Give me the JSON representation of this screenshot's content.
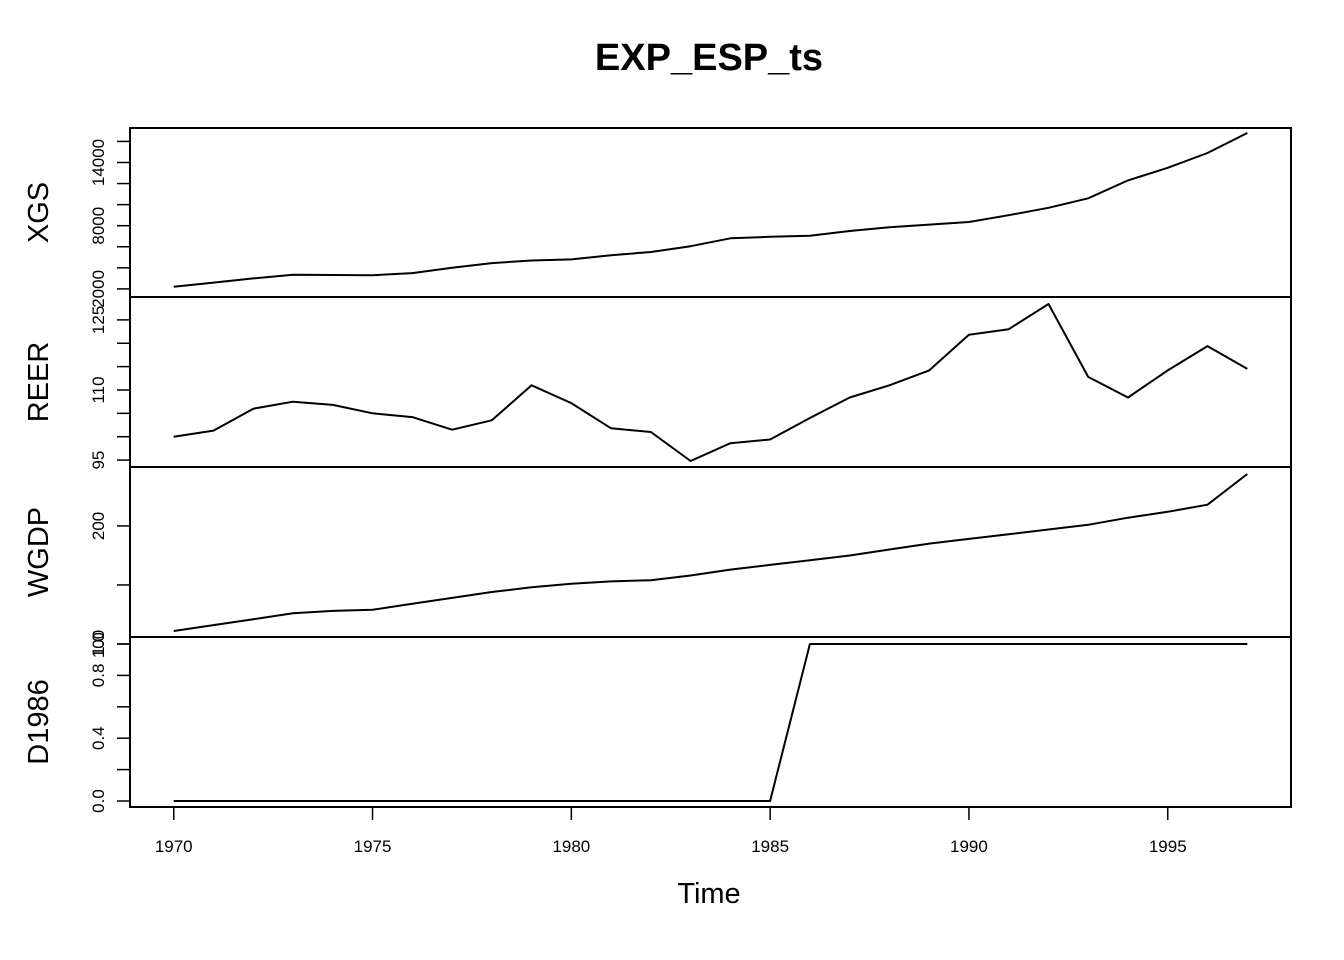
{
  "chart_data": {
    "type": "line",
    "title": "EXP_ESP_ts",
    "xlabel": "Time",
    "x": [
      1970,
      1971,
      1972,
      1973,
      1974,
      1975,
      1976,
      1977,
      1978,
      1979,
      1980,
      1981,
      1982,
      1983,
      1984,
      1985,
      1986,
      1987,
      1988,
      1989,
      1990,
      1991,
      1992,
      1993,
      1994,
      1995,
      1996,
      1997
    ],
    "xlim": [
      1968.9,
      1998.1
    ],
    "x_ticks": [
      1970,
      1975,
      1980,
      1985,
      1990,
      1995
    ],
    "x_tick_labels": [
      "1970",
      "1975",
      "1980",
      "1985",
      "1990",
      "1995"
    ],
    "grid": false,
    "line_color": "#000000",
    "series": [
      {
        "name": "XGS",
        "ylim": [
          1800,
          16800
        ],
        "y_ticks": [
          2000,
          4000,
          6000,
          8000,
          10000,
          12000,
          14000,
          16000
        ],
        "y_tick_labels": [
          "2000",
          "",
          "",
          "8000",
          "",
          "",
          "14000",
          ""
        ],
        "values": [
          2200,
          2600,
          3000,
          3350,
          3320,
          3300,
          3500,
          4000,
          4450,
          4700,
          4800,
          5200,
          5500,
          6050,
          6800,
          6950,
          7050,
          7500,
          7850,
          8100,
          8350,
          9000,
          9700,
          10600,
          12300,
          13500,
          14900,
          16800
        ]
      },
      {
        "name": "REER",
        "ylim": [
          94.8,
          128.4
        ],
        "y_ticks": [
          95,
          100,
          105,
          110,
          115,
          120,
          125
        ],
        "y_tick_labels": [
          "95",
          "",
          "",
          "110",
          "",
          "",
          "125"
        ],
        "values": [
          100.0,
          101.3,
          106.0,
          107.5,
          106.8,
          105.0,
          104.2,
          101.5,
          103.5,
          111.0,
          107.2,
          101.8,
          101.0,
          94.8,
          98.6,
          99.4,
          104.0,
          108.4,
          111.0,
          114.2,
          121.8,
          123.0,
          128.4,
          112.8,
          108.4,
          114.2,
          119.4,
          114.5
        ]
      },
      {
        "name": "WGDP",
        "ylim": [
          111,
          244
        ],
        "y_ticks": [
          100,
          150,
          200
        ],
        "y_tick_labels": [
          "100",
          "",
          "200"
        ],
        "values": [
          111,
          116,
          121,
          126,
          128,
          129,
          134,
          139,
          144,
          148,
          151,
          153,
          154,
          158,
          163,
          167,
          171,
          175,
          180,
          185,
          189,
          193,
          197,
          201,
          207,
          212,
          218,
          244
        ]
      },
      {
        "name": "D1986",
        "ylim": [
          0,
          1
        ],
        "y_ticks": [
          0,
          0.2,
          0.4,
          0.6,
          0.8,
          1.0
        ],
        "y_tick_labels": [
          "0.0",
          "",
          "0.4",
          "",
          "0.8",
          "1.0"
        ],
        "values": [
          0,
          0,
          0,
          0,
          0,
          0,
          0,
          0,
          0,
          0,
          0,
          0,
          0,
          0,
          0,
          0,
          1,
          1,
          1,
          1,
          1,
          1,
          1,
          1,
          1,
          1,
          1,
          1
        ]
      }
    ]
  }
}
